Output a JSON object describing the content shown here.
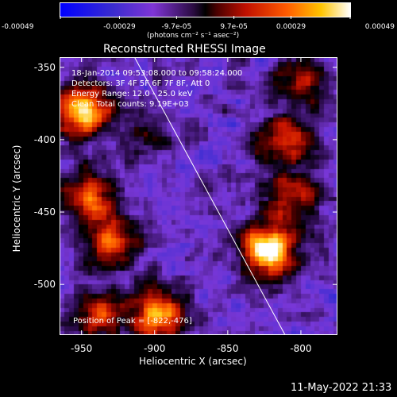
{
  "chart_data": {
    "type": "heatmap",
    "title": "Reconstructed RHESSI Image",
    "xlabel": "Heliocentric X (arcsec)",
    "ylabel": "Heliocentric Y (arcsec)",
    "xlim": [
      -965,
      -775
    ],
    "ylim": [
      -535,
      -343
    ],
    "x_ticks": [
      -950,
      -900,
      -850,
      -800
    ],
    "y_ticks": [
      -350,
      -400,
      -450,
      -500
    ],
    "colorbar": {
      "ticks": [
        "-0.00049",
        "-0.00029",
        "-9.7e-05",
        "9.7e-05",
        "0.00029",
        "0.00049"
      ],
      "range": [
        -0.00049,
        0.00049
      ],
      "unit": "(photons cm⁻² s⁻¹ asec⁻²)"
    },
    "annotations": {
      "time": "18-Jan-2014 09:53:08.000 to 09:58:24.000",
      "detectors": "Detectors: 3F 4F 5F 6F 7F 8F, Att 0",
      "energy": "Energy Range: 12.0 - 25.0 keV",
      "clean": "Clean     Total counts: 9.19E+03",
      "peak": "Position of Peak = [-822,-476]"
    },
    "peak": [
      -822,
      -476
    ],
    "limb_line": [
      [
        -914,
        -343
      ],
      [
        -811,
        -535
      ]
    ],
    "sources": [
      {
        "x": -822,
        "y": -476,
        "intensity": 1.0
      },
      {
        "x": -950,
        "y": -380,
        "intensity": 0.85
      },
      {
        "x": -898,
        "y": -520,
        "intensity": 0.75
      },
      {
        "x": -945,
        "y": -440,
        "intensity": 0.6
      },
      {
        "x": -930,
        "y": -470,
        "intensity": 0.55
      },
      {
        "x": -810,
        "y": -400,
        "intensity": 0.5
      },
      {
        "x": -805,
        "y": -440,
        "intensity": 0.45
      },
      {
        "x": -800,
        "y": -360,
        "intensity": 0.4
      },
      {
        "x": -940,
        "y": -520,
        "intensity": 0.5
      },
      {
        "x": -905,
        "y": -395,
        "intensity": 0.25
      }
    ]
  },
  "footer": {
    "date": "11-May-2022 21:33"
  }
}
